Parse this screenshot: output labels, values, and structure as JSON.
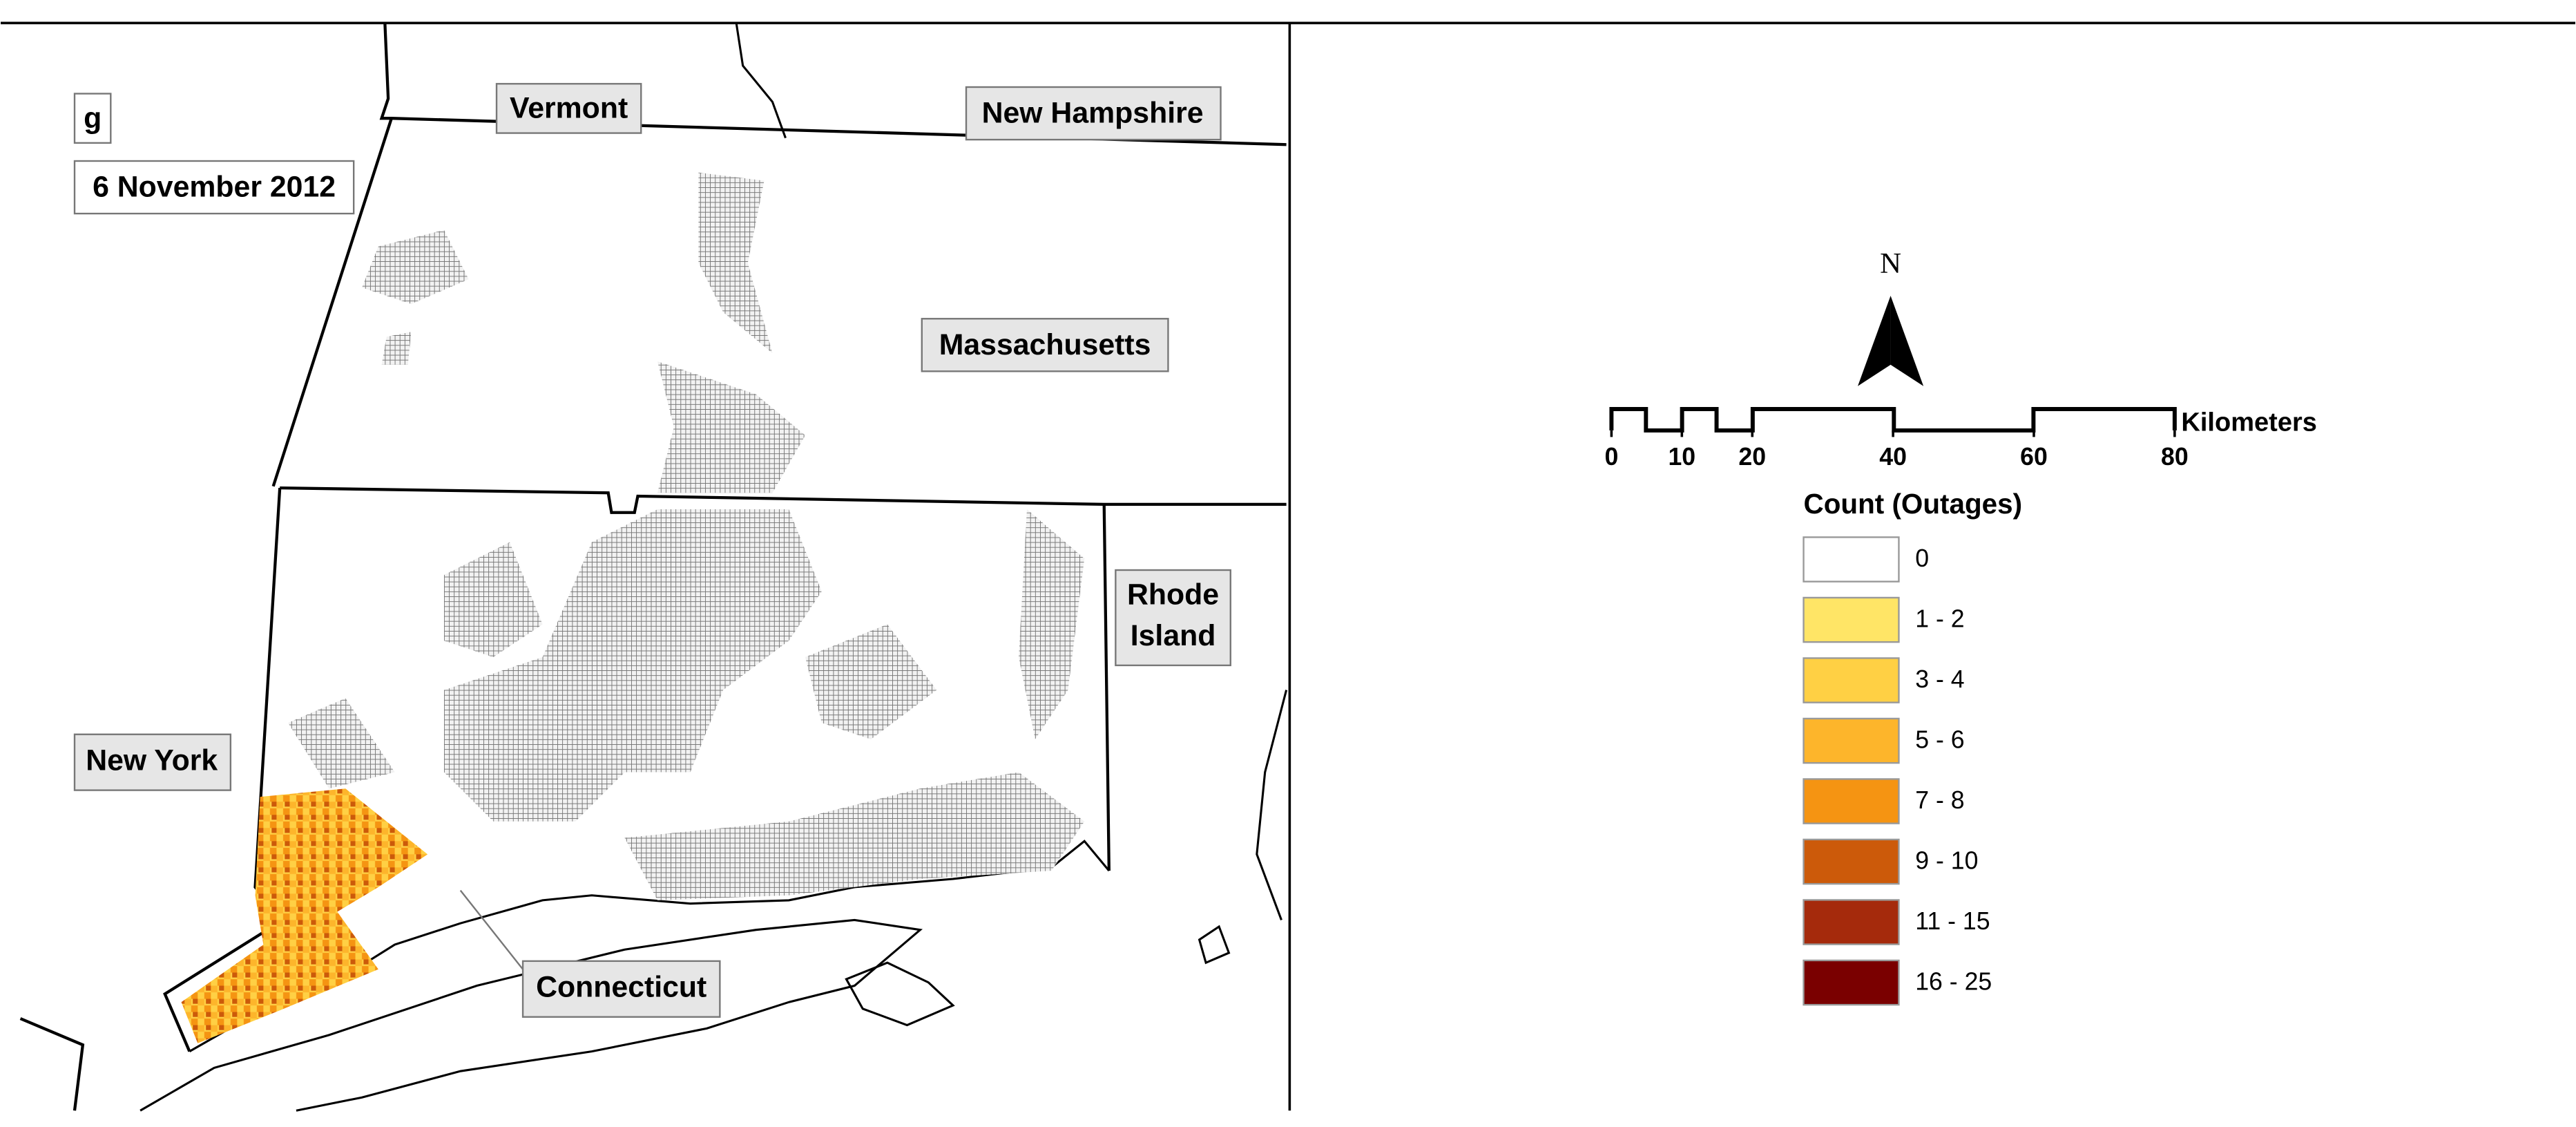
{
  "panel": {
    "letter": "g",
    "date": "6 November 2012"
  },
  "states": {
    "vermont": "Vermont",
    "new_hampshire": "New Hampshire",
    "massachusetts": "Massachusetts",
    "rhode_island": [
      "Rhode",
      "Island"
    ],
    "new_york": "New York",
    "connecticut": "Connecticut"
  },
  "north_arrow": {
    "label": "N"
  },
  "scale_bar": {
    "ticks": [
      0,
      10,
      20,
      40,
      60,
      80
    ],
    "unit": "Kilometers"
  },
  "legend": {
    "title": "Count (Outages)",
    "items": [
      {
        "label": "0",
        "color": "#ffffff"
      },
      {
        "label": "1 - 2",
        "color": "#ffe566"
      },
      {
        "label": "3 - 4",
        "color": "#ffd044"
      },
      {
        "label": "5 - 6",
        "color": "#fdb52b"
      },
      {
        "label": "7 - 8",
        "color": "#f59412"
      },
      {
        "label": "9 - 10",
        "color": "#cc5a0a"
      },
      {
        "label": "11 - 15",
        "color": "#a52a0c"
      },
      {
        "label": "16 - 25",
        "color": "#7a0000"
      }
    ]
  }
}
